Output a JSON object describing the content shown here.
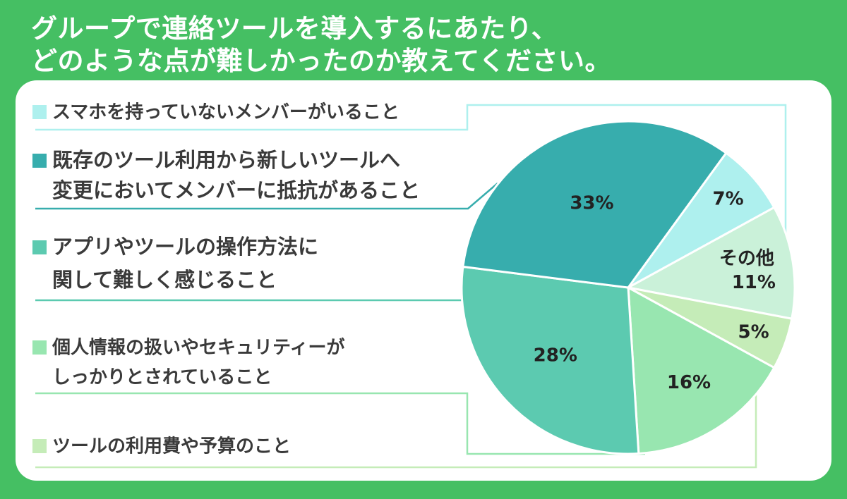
{
  "title_lines": [
    "グループで連絡ツールを導入するにあたり、",
    "どのような点が難しかったのか教えてください。"
  ],
  "chart_data": {
    "type": "pie",
    "title": "グループで連絡ツールを導入するにあたり、どのような点が難しかったのか教えてください。",
    "unit": "%",
    "slices": [
      {
        "label": "スマホを持っていないメンバーがいること",
        "label_lines": [
          "スマホを持っていないメンバーがいること"
        ],
        "value": 7,
        "display": "7%",
        "color": "#aef0ee"
      },
      {
        "label": "その他",
        "label_lines": [],
        "value": 11,
        "display": "11%",
        "inner_label": "その他",
        "color": "#caf1d9"
      },
      {
        "label": "ツールの利用費や予算のこと",
        "label_lines": [
          "ツールの利用費や予算のこと"
        ],
        "value": 5,
        "display": "5%",
        "color": "#c5ecb8"
      },
      {
        "label": "個人情報の扱いやセキュリティーがしっかりとされていること",
        "label_lines": [
          "個人情報の扱いやセキュリティーが",
          "しっかりとされていること"
        ],
        "value": 16,
        "display": "16%",
        "color": "#98e6b0"
      },
      {
        "label": "アプリやツールの操作方法に関して難しく感じること",
        "label_lines": [
          "アプリやツールの操作方法に",
          "関して難しく感じること"
        ],
        "value": 28,
        "display": "28%",
        "color": "#5ccab0"
      },
      {
        "label": "既存のツール利用から新しいツールへ変更においてメンバーに抵抗があること",
        "label_lines": [
          "既存のツール利用から新しいツールへ",
          "変更においてメンバーに抵抗があること"
        ],
        "value": 33,
        "display": "33%",
        "color": "#37adad"
      }
    ]
  }
}
